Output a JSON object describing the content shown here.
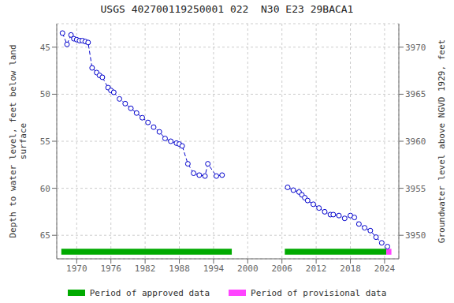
{
  "chart_data": {
    "type": "line",
    "title": "USGS 402700119250001 022  N30 E23 29BACA1",
    "y_label": "Depth to water level, feet below land\nsurface",
    "y2_label": "Groundwater level above NGVD 1929, feet",
    "xlim": [
      1966.5,
      2026.5
    ],
    "xticks": [
      1970,
      1976,
      1982,
      1988,
      1994,
      2000,
      2006,
      2012,
      2018,
      2024
    ],
    "ylim": [
      67.5,
      42.5
    ],
    "yticks": [
      45,
      50,
      55,
      60,
      65
    ],
    "y2lim": [
      3947.5,
      3972.5
    ],
    "y2ticks": [
      3950,
      3955,
      3960,
      3965,
      3970
    ],
    "grid": true,
    "legend": "bottom",
    "series": [
      {
        "color": "#0000cc",
        "marker": "circle",
        "line_style": "dashed",
        "x": [
          1967.5,
          1968.3,
          1969.0,
          1969.5,
          1970.0,
          1970.5,
          1971.0,
          1971.5,
          1972.0,
          1972.7,
          1973.5,
          1974.0,
          1974.5,
          1975.5,
          1976.0,
          1976.5,
          1977.5,
          1978.5,
          1979.5,
          1980.5,
          1981.5,
          1982.5,
          1983.5,
          1984.5,
          1985.5,
          1986.5,
          1987.5,
          1988.0,
          1988.5,
          1989.5,
          1990.5,
          1991.5,
          1992.5,
          1993.0,
          1994.5,
          1995.5
        ],
        "values": [
          43.5,
          44.7,
          43.7,
          44.1,
          44.2,
          44.3,
          44.3,
          44.4,
          44.5,
          47.2,
          47.7,
          48.0,
          48.2,
          49.3,
          49.6,
          49.8,
          50.5,
          51.0,
          51.5,
          52.0,
          52.5,
          53.0,
          53.5,
          54.0,
          54.7,
          55.0,
          55.2,
          55.3,
          55.5,
          57.4,
          58.4,
          58.6,
          58.7,
          57.4,
          58.7,
          58.6
        ]
      },
      {
        "color": "#0000cc",
        "marker": "circle",
        "line_style": "dashed",
        "x": [
          2007.0,
          2008.0,
          2009.0,
          2009.5,
          2010.0,
          2010.5,
          2011.5,
          2012.5,
          2013.5,
          2014.5,
          2015.0,
          2016.0,
          2017.0,
          2018.0,
          2018.7,
          2019.5,
          2020.5,
          2021.5,
          2022.5,
          2023.5,
          2024.5
        ],
        "values": [
          59.9,
          60.2,
          60.4,
          60.7,
          61.0,
          61.3,
          61.7,
          62.1,
          62.5,
          62.8,
          62.8,
          62.9,
          63.2,
          62.9,
          63.1,
          63.8,
          64.2,
          64.5,
          65.2,
          65.8,
          66.2
        ]
      }
    ],
    "periods": [
      {
        "name": "Period of approved data",
        "color": "#00aa00",
        "ranges": [
          [
            1967.3,
            1997.2
          ],
          [
            2006.5,
            2024.3
          ]
        ]
      },
      {
        "name": "Period of provisional data",
        "color": "#ff44ff",
        "ranges": [
          [
            2024.3,
            2025.2
          ]
        ]
      }
    ]
  }
}
